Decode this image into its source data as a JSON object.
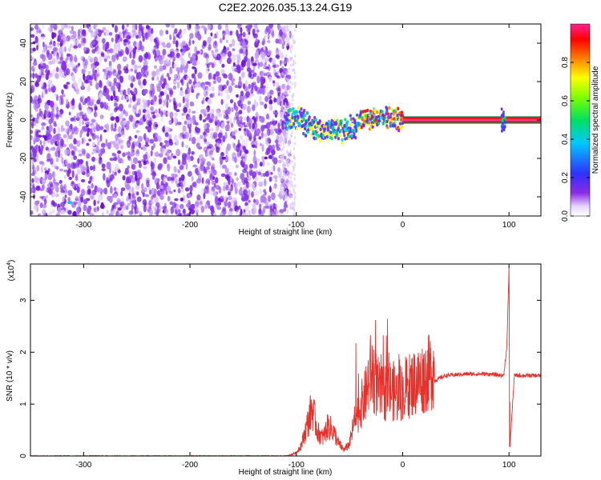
{
  "title": "C2E2.2026.035.13.24.G19",
  "chart_data": [
    {
      "type": "heatmap",
      "xlabel": "Height of straight line (km)",
      "ylabel": "Frequency (Hz)",
      "xlim": [
        -350,
        130
      ],
      "ylim": [
        -50,
        50
      ],
      "xticks": [
        -300,
        -200,
        -100,
        0,
        100
      ],
      "yticks": [
        -40,
        -20,
        0,
        20,
        40
      ],
      "colorbar": {
        "label": "Normalized spectral amplitude",
        "range": [
          0,
          1
        ],
        "ticks": [
          "0.0",
          "0.2",
          "0.4",
          "0.6",
          "0.8"
        ],
        "colormap": "rainbow (white → purple → blue → cyan → green → yellow → red → magenta)"
      },
      "noise_region_x": [
        -350,
        -105
      ],
      "signal_track": [
        {
          "x": -105,
          "y": 2
        },
        {
          "x": -95,
          "y": 0
        },
        {
          "x": -85,
          "y": -4
        },
        {
          "x": -75,
          "y": -6
        },
        {
          "x": -65,
          "y": -4
        },
        {
          "x": -55,
          "y": -6
        },
        {
          "x": -45,
          "y": -3
        },
        {
          "x": -35,
          "y": 0
        },
        {
          "x": -25,
          "y": 1
        },
        {
          "x": -15,
          "y": 2
        },
        {
          "x": -5,
          "y": 1
        },
        {
          "x": 0,
          "y": 0
        },
        {
          "x": 50,
          "y": 0
        },
        {
          "x": 95,
          "y": 0
        },
        {
          "x": 130,
          "y": 0
        }
      ],
      "grid": false
    },
    {
      "type": "line",
      "xlabel": "Height of straight line (km)",
      "ylabel": "SNR (10 * v/v)",
      "yscale_label": "(x10^4)",
      "xlim": [
        -350,
        130
      ],
      "ylim": [
        0,
        3.7
      ],
      "xticks": [
        -300,
        -200,
        -100,
        0,
        100
      ],
      "yticks": [
        0,
        1,
        2,
        3
      ],
      "series": [
        {
          "color": "#e8302a",
          "points": [
            [
              -350,
              0.0
            ],
            [
              -110,
              0.0
            ],
            [
              -100,
              0.05
            ],
            [
              -95,
              0.2
            ],
            [
              -90,
              0.5
            ],
            [
              -85,
              0.8
            ],
            [
              -80,
              0.4
            ],
            [
              -75,
              0.3
            ],
            [
              -70,
              0.5
            ],
            [
              -65,
              0.4
            ],
            [
              -60,
              0.2
            ],
            [
              -55,
              0.1
            ],
            [
              -50,
              0.2
            ],
            [
              -45,
              0.6
            ],
            [
              -40,
              0.8
            ],
            [
              -35,
              1.0
            ],
            [
              -30,
              1.4
            ],
            [
              -25,
              1.2
            ],
            [
              -20,
              1.0
            ],
            [
              -15,
              1.1
            ],
            [
              -10,
              1.1
            ],
            [
              -5,
              1.0
            ],
            [
              0,
              1.1
            ],
            [
              10,
              1.2
            ],
            [
              20,
              1.3
            ],
            [
              30,
              1.45
            ],
            [
              40,
              1.55
            ],
            [
              60,
              1.58
            ],
            [
              80,
              1.58
            ],
            [
              95,
              1.55
            ],
            [
              98,
              2.1
            ],
            [
              100,
              3.6
            ],
            [
              101,
              0.2
            ],
            [
              105,
              1.55
            ],
            [
              130,
              1.55
            ]
          ]
        }
      ],
      "grid": false
    }
  ]
}
